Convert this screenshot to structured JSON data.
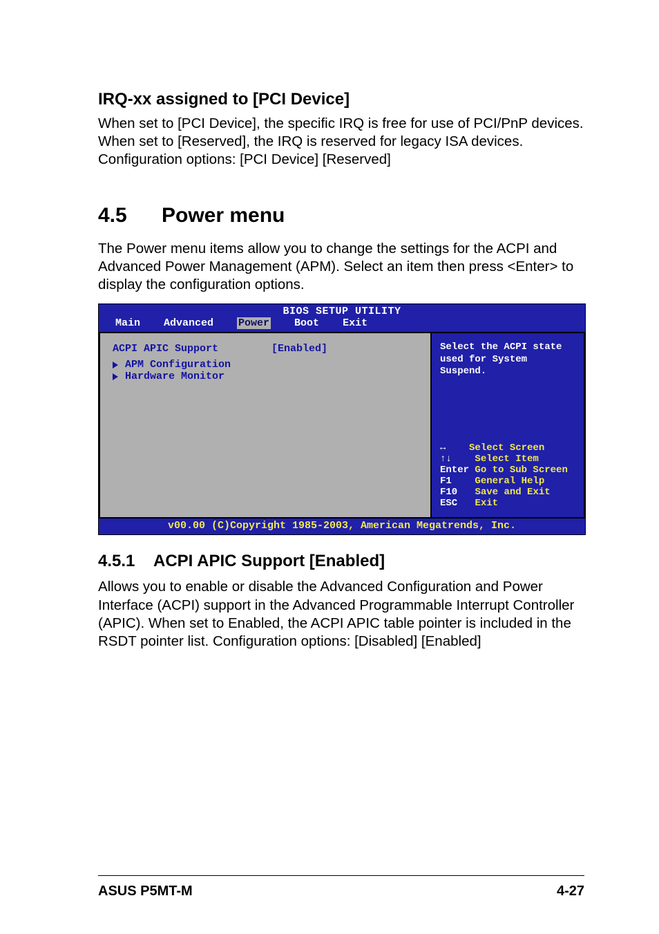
{
  "irq": {
    "heading": "IRQ-xx assigned to [PCI Device]",
    "body": "When set to [PCI Device], the specific IRQ is free for use of PCI/PnP devices. When set to [Reserved], the IRQ is reserved for legacy ISA devices. Configuration options: [PCI Device] [Reserved]"
  },
  "section45": {
    "num": "4.5",
    "title": "Power menu",
    "body": "The Power menu items allow you to change the settings for the ACPI and Advanced Power Management (APM). Select an item then press <Enter> to display the configuration options."
  },
  "bios": {
    "colors": {
      "bg_blue": "#2020a8",
      "panel_gray": "#b0b0b0",
      "text_blue": "#1414a0",
      "text_white": "#fefefe",
      "text_yellow": "#f0e84c"
    },
    "title": "BIOS SETUP UTILITY",
    "tabs": [
      "Main",
      "Advanced",
      "Power",
      "Boot",
      "Exit"
    ],
    "selected_tab": "Power",
    "option": {
      "label": "ACPI APIC Support",
      "value": "[Enabled]"
    },
    "subitems": [
      "APM Configuration",
      "Hardware Monitor"
    ],
    "help_text": "Select the ACPI state used for System Suspend.",
    "keys": {
      "arrows_lr": "↔",
      "arrows_lr_label": "Select Screen",
      "arrows_ud": "↑↓",
      "arrows_ud_label": "Select Item",
      "enter": "Enter",
      "enter_label": "Go to Sub Screen",
      "f1": "F1",
      "f1_label": "General Help",
      "f10": "F10",
      "f10_label": "Save and Exit",
      "esc": "ESC",
      "esc_label": "Exit"
    },
    "footer": "v00.00 (C)Copyright 1985-2003, American Megatrends, Inc."
  },
  "section451": {
    "num": "4.5.1",
    "title": "ACPI APIC Support [Enabled]",
    "body": "Allows you to enable or disable the Advanced Configuration and Power Interface (ACPI) support in the Advanced Programmable Interrupt Controller (APIC). When set to Enabled, the ACPI APIC table pointer is included in the RSDT pointer list. Configuration options: [Disabled] [Enabled]"
  },
  "footer": {
    "left": "ASUS P5MT-M",
    "right": "4-27"
  }
}
